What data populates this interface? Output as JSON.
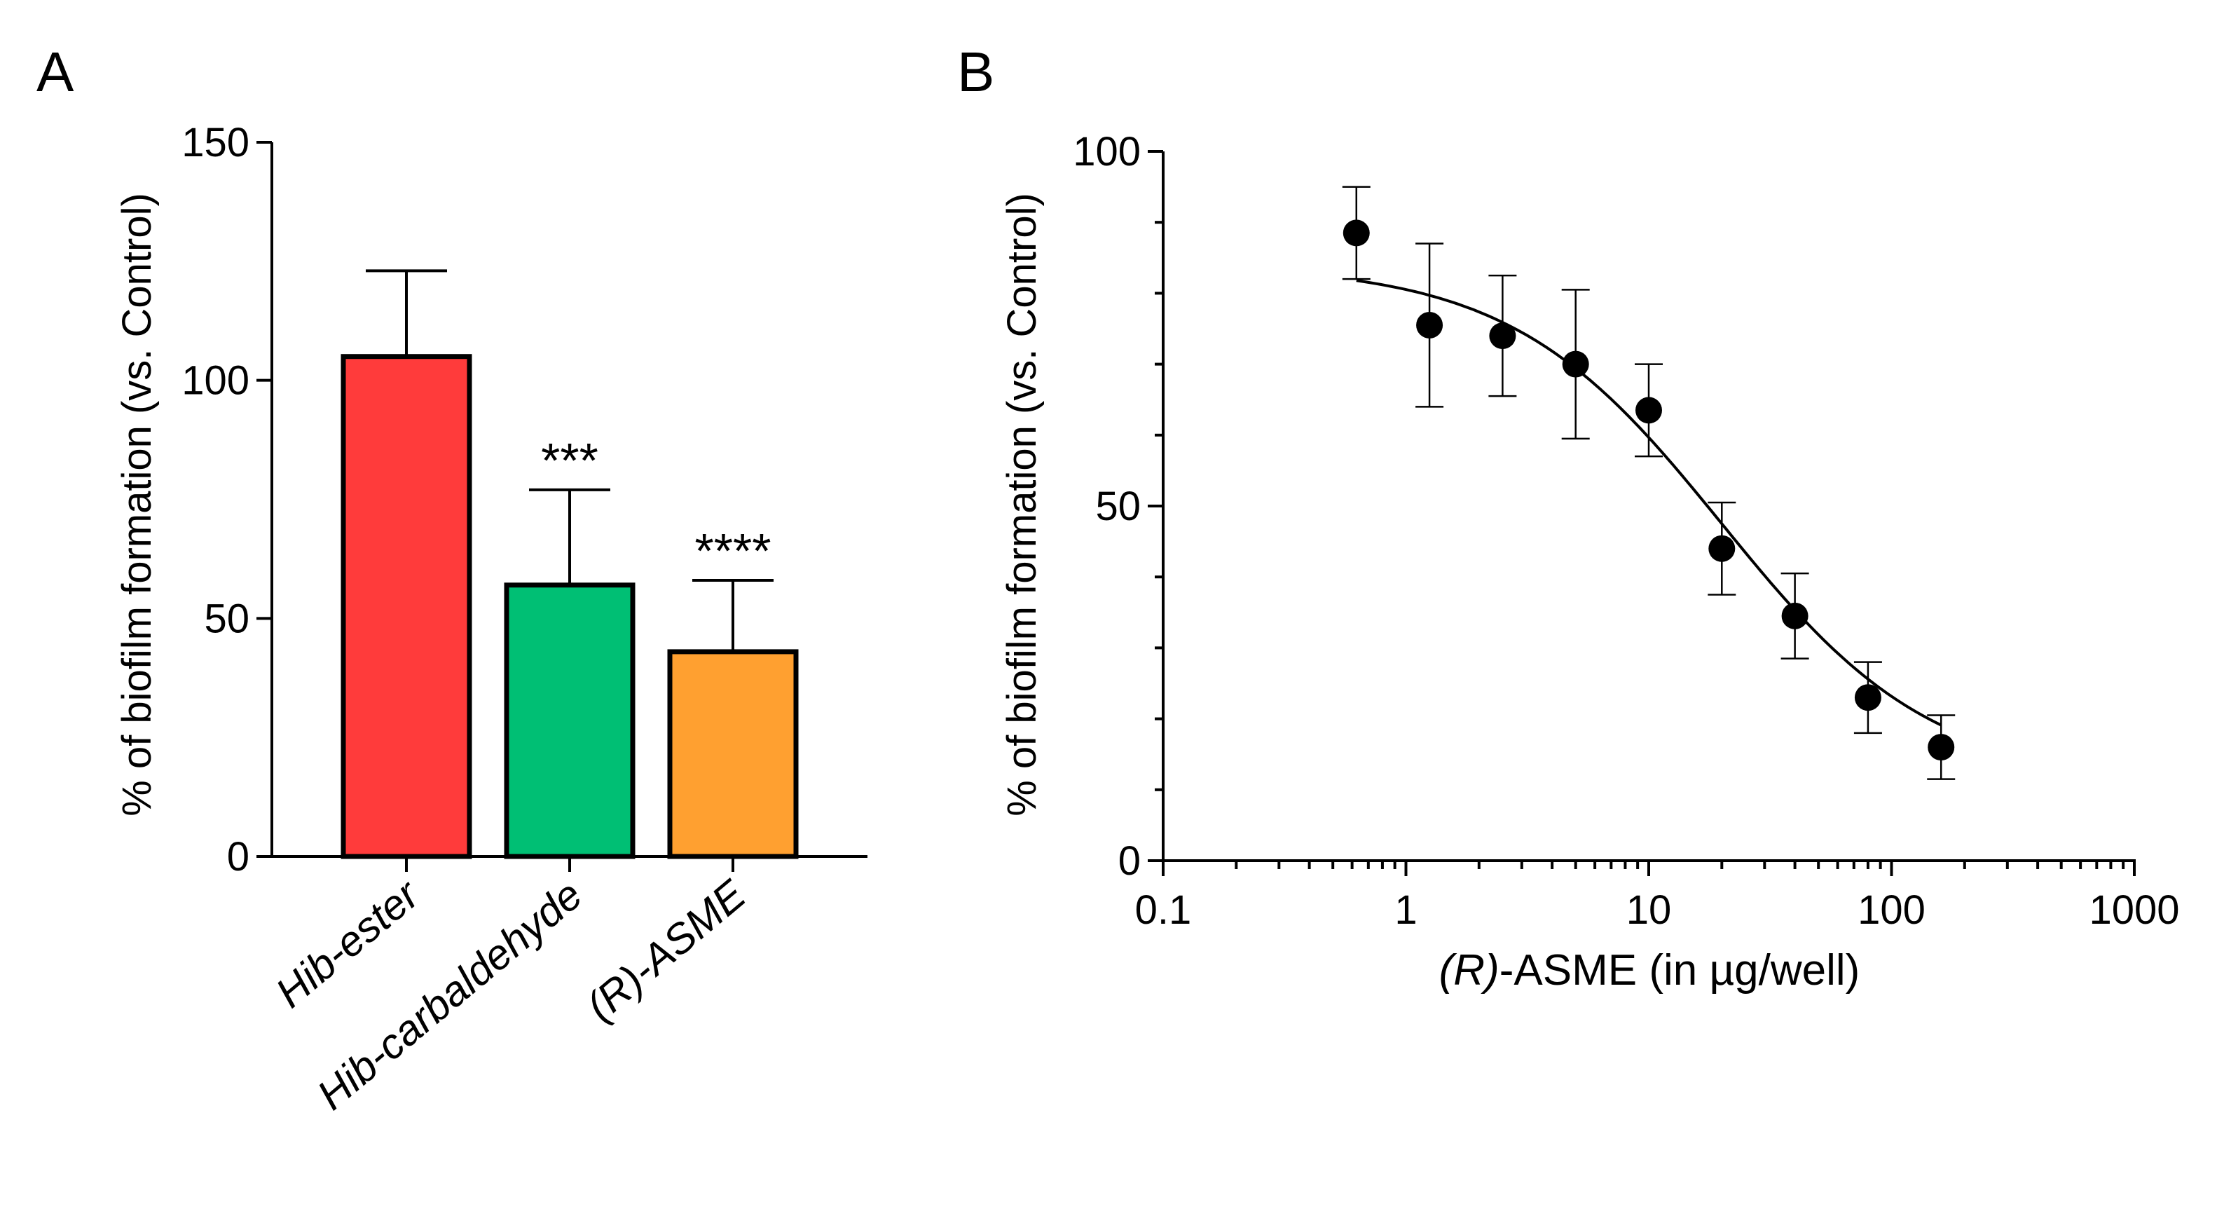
{
  "chart_data": [
    {
      "type": "bar",
      "panel_label": "A",
      "ylabel": "% of biofilm formation (vs. Control)",
      "ylim": [
        0,
        150
      ],
      "yticks": [
        0,
        50,
        100,
        150
      ],
      "categories": [
        "Hib-ester",
        "Hib-carbaldehyde",
        "(R)-ASME"
      ],
      "values": [
        105,
        57,
        43
      ],
      "error_plus": [
        18,
        20,
        15
      ],
      "colors": [
        "#FF3B3B",
        "#00BF74",
        "#FFA030"
      ],
      "significance": [
        "",
        "***",
        "****"
      ]
    },
    {
      "type": "scatter",
      "panel_label": "B",
      "ylabel": "% of biofilm formation (vs. Control)",
      "xlabel_italic": "(R)",
      "xlabel_rest": "-ASME (in µg/well)",
      "x_scale": "log",
      "xlim": [
        0.1,
        1000
      ],
      "xticks": [
        "0.1",
        "1",
        "10",
        "100",
        "1000"
      ],
      "ylim": [
        0,
        100
      ],
      "yticks": [
        0,
        50,
        100
      ],
      "x": [
        0.625,
        1.25,
        2.5,
        5,
        10,
        20,
        40,
        80,
        160
      ],
      "y": [
        88.5,
        75.5,
        74,
        70,
        63.5,
        44,
        34.5,
        23,
        16
      ],
      "error": [
        6.5,
        11.5,
        8.5,
        10.5,
        6.5,
        6.5,
        6,
        5,
        4.5
      ],
      "fit": {
        "type": "four-parameter logistic",
        "top": 84,
        "bottom": 11,
        "ic50": 20,
        "hill": 1
      }
    }
  ]
}
